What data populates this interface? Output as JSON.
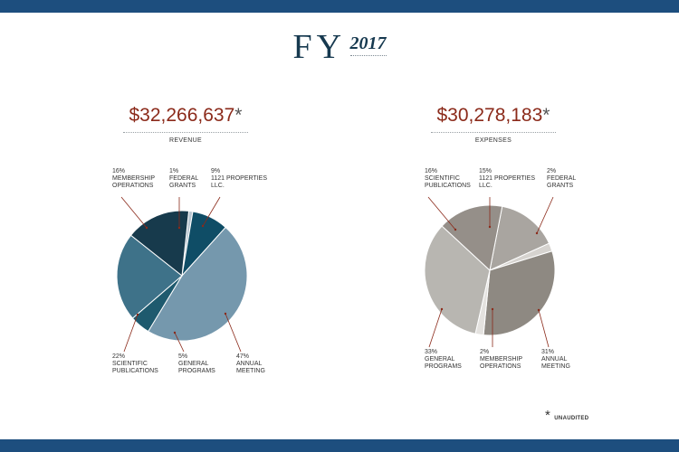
{
  "heading": {
    "fy": "FY",
    "year": "2017"
  },
  "footnote": {
    "star": "*",
    "text": "UNAUDITED"
  },
  "colors": {
    "bar": "#1d4e7e",
    "total": "#8b2a1a",
    "leader": "#8b2a1a"
  },
  "chart_data": [
    {
      "type": "pie",
      "total": "$32,266,637",
      "total_mark": "*",
      "title": "REVENUE",
      "slices": [
        {
          "label": [
            "1%",
            "FEDERAL",
            "GRANTS"
          ],
          "value": 1,
          "color": "#b8c6d1"
        },
        {
          "label": [
            "9%",
            "1121 PROPERTIES",
            "LLC."
          ],
          "value": 9,
          "color": "#0f4d66"
        },
        {
          "label": [
            "47%",
            "ANNUAL",
            "MEETING"
          ],
          "value": 47,
          "color": "#7598ad"
        },
        {
          "label": [
            "5%",
            "GENERAL",
            "PROGRAMS"
          ],
          "value": 5,
          "color": "#1e5a6e"
        },
        {
          "label": [
            "22%",
            "SCIENTIFIC",
            "PUBLICATIONS"
          ],
          "value": 22,
          "color": "#3e7289"
        },
        {
          "label": [
            "16%",
            "MEMBERSHIP",
            "OPERATIONS"
          ],
          "value": 16,
          "color": "#173a4c"
        }
      ]
    },
    {
      "type": "pie",
      "total": "$30,278,183",
      "total_mark": "*",
      "title": "EXPENSES",
      "slices": [
        {
          "label": [
            "15%",
            "1121 PROPERTIES",
            "LLC."
          ],
          "value": 15,
          "color": "#a9a5a0"
        },
        {
          "label": [
            "2%",
            "FEDERAL",
            "GRANTS"
          ],
          "value": 2,
          "color": "#d6d3cf"
        },
        {
          "label": [
            "31%",
            "ANNUAL",
            "MEETING"
          ],
          "value": 31,
          "color": "#8e8982"
        },
        {
          "label": [
            "2%",
            "MEMBERSHIP",
            "OPERATIONS"
          ],
          "value": 2,
          "color": "#e4e2df"
        },
        {
          "label": [
            "33%",
            "GENERAL",
            "PROGRAMS"
          ],
          "value": 33,
          "color": "#b8b6b1"
        },
        {
          "label": [
            "16%",
            "SCIENTIFIC",
            "PUBLICATIONS"
          ],
          "value": 16,
          "color": "#958f89"
        }
      ]
    }
  ]
}
